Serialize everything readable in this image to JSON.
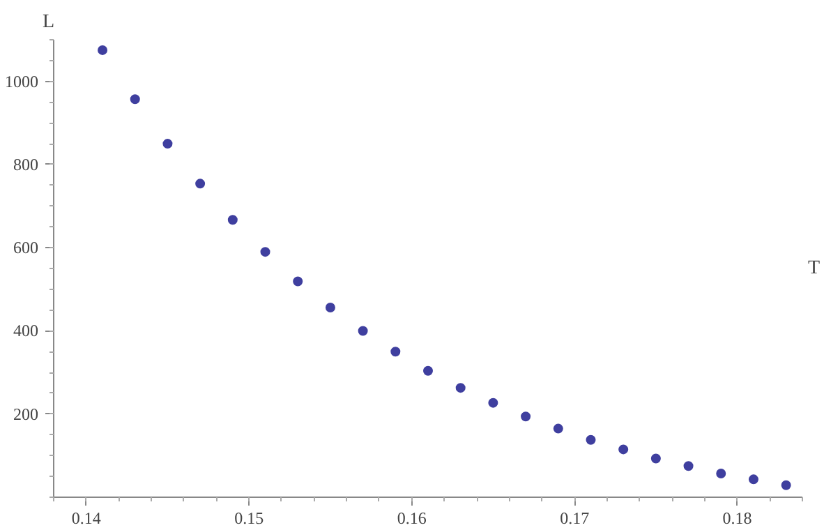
{
  "chart_data": {
    "type": "scatter",
    "xlabel": "T",
    "ylabel": "L",
    "x": [
      0.141,
      0.143,
      0.145,
      0.147,
      0.149,
      0.151,
      0.153,
      0.155,
      0.157,
      0.159,
      0.161,
      0.163,
      0.165,
      0.167,
      0.169,
      0.171,
      0.173,
      0.175,
      0.177,
      0.179,
      0.181,
      0.183
    ],
    "series": [
      {
        "color": "#3f3f9f",
        "values": [
          1075,
          957,
          850,
          754,
          667,
          590,
          519,
          456,
          400,
          350,
          304,
          263,
          227,
          194,
          165,
          138,
          115,
          93,
          75,
          57,
          43,
          29
        ]
      }
    ],
    "xlim": [
      0.138,
      0.184
    ],
    "ylim": [
      0,
      1100
    ],
    "xticks": [
      0.14,
      0.15,
      0.16,
      0.17,
      0.18
    ],
    "yticks": [
      200,
      400,
      600,
      800,
      1000
    ],
    "grid": false,
    "marker": "circle"
  }
}
